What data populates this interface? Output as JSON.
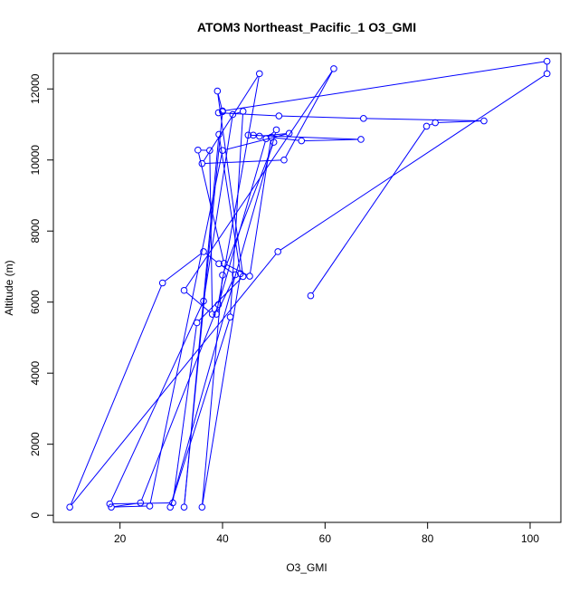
{
  "chart_data": {
    "type": "scatter",
    "title": "ATOM3 Northeast_Pacific_1 O3_GMI",
    "xlabel": "O3_GMI",
    "ylabel": "Altitude (m)",
    "xlim": [
      7,
      106
    ],
    "ylim": [
      -200,
      13000
    ],
    "xticks": [
      20,
      40,
      60,
      80,
      100
    ],
    "yticks": [
      0,
      2000,
      4000,
      6000,
      8000,
      10000,
      12000
    ],
    "grid": false,
    "legend": "none",
    "series_color": "#0000FF",
    "markers": "open-circle",
    "connected": true,
    "series": [
      {
        "x": [
          57.2,
          79.8,
          81.5,
          91.0,
          67.5,
          51.0,
          39.2,
          40.0,
          103.3,
          103.3,
          50.8,
          10.2,
          28.3,
          36.3,
          39.3,
          42.5,
          38.8,
          47.2,
          36.0,
          52.0,
          61.7,
          32.5,
          38.0,
          37.5,
          35.2,
          40.3,
          45.3,
          49.5,
          55.4,
          67.0,
          45.0,
          46.0,
          47.2,
          53.0,
          40.0,
          25.8,
          18.3,
          24.0,
          39.2,
          48.5,
          50.5,
          29.8,
          41.5,
          44.0,
          42.0,
          36.3,
          18.0,
          30.3,
          35.0,
          44.0,
          39.0,
          40.0,
          32.5,
          39.3,
          43.5,
          36.0,
          40.0,
          50.0
        ],
        "y": [
          6180,
          10950,
          11050,
          11100,
          11170,
          11240,
          11330,
          11380,
          12780,
          12430,
          7420,
          230,
          6540,
          7420,
          7080,
          6770,
          5660,
          12430,
          9900,
          10000,
          12570,
          6330,
          5660,
          10270,
          10280,
          7090,
          6730,
          10640,
          10540,
          10580,
          10700,
          10700,
          10670,
          10750,
          10270,
          260,
          230,
          350,
          5930,
          10600,
          10850,
          230,
          5580,
          11370,
          11280,
          6030,
          320,
          350,
          5420,
          6720,
          11940,
          11360,
          230,
          10720,
          6800,
          230,
          6760,
          10500
        ]
      }
    ]
  }
}
